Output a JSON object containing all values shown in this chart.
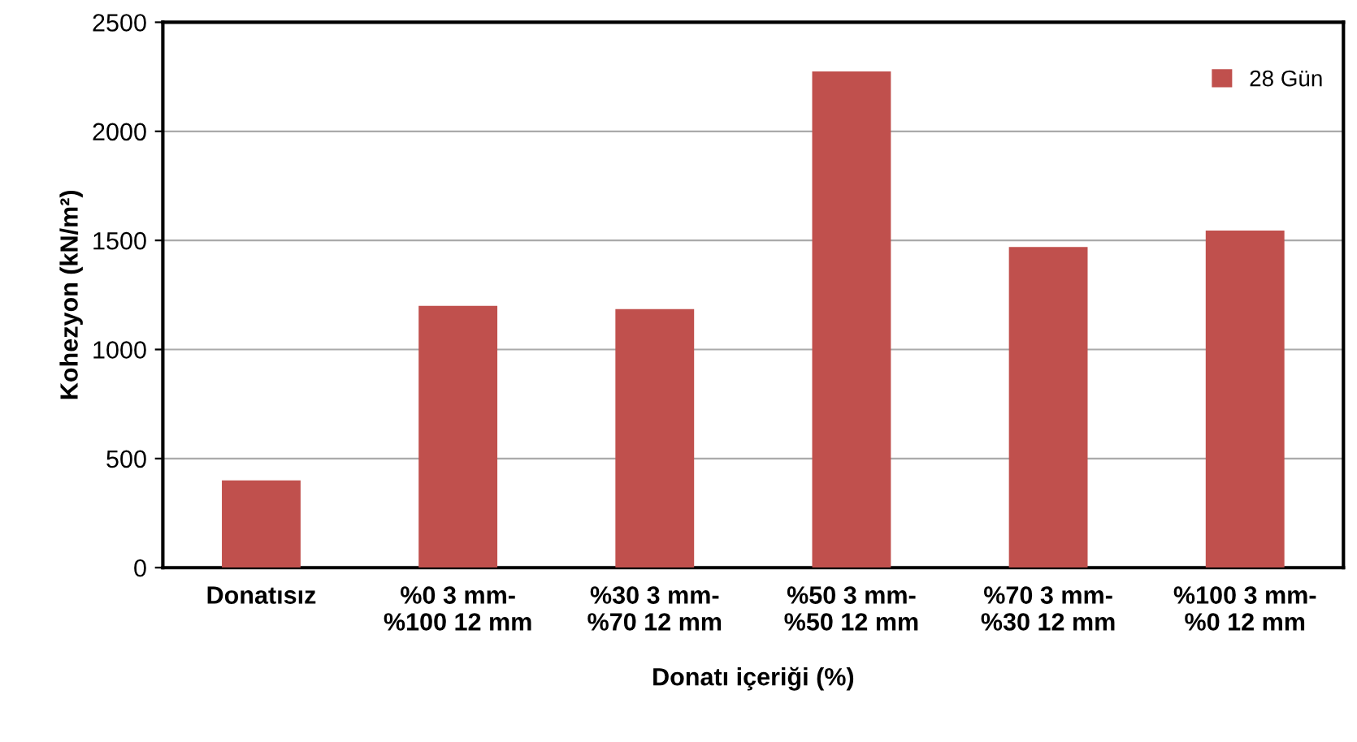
{
  "chart_data": {
    "type": "bar",
    "xlabel": "Donatı içeriği (%)",
    "ylabel": "Kohezyon (kN/m²)",
    "categories": [
      "Donatısız",
      "%0 3 mm-\n%100 12 mm",
      "%30 3 mm-\n%70 12 mm",
      "%50 3 mm-\n%50 12 mm",
      "%70 3 mm-\n%30 12 mm",
      "%100 3 mm-\n%0 12 mm"
    ],
    "series": [
      {
        "name": "28 Gün",
        "color": "#c0504d",
        "values": [
          400,
          1200,
          1185,
          2275,
          1470,
          1545
        ]
      }
    ],
    "ylim": [
      0,
      2500
    ],
    "yticks": [
      0,
      500,
      1000,
      1500,
      2000,
      2500
    ],
    "grid": "y",
    "legend": "top right"
  }
}
